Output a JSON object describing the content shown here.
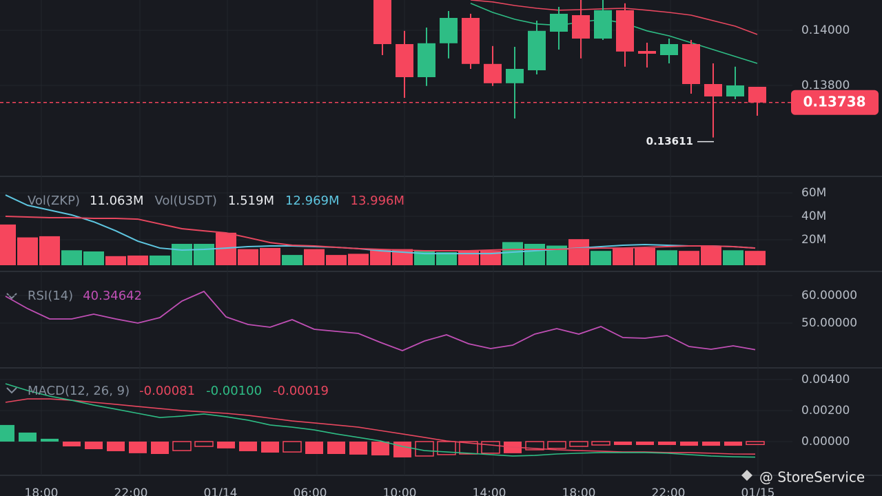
{
  "chart_data": [
    {
      "type": "candlestick",
      "open": [
        0.14135,
        0.1395,
        0.1383,
        0.13953,
        0.14045,
        0.13878,
        0.13808,
        0.13855,
        0.13995,
        0.14055,
        0.1397,
        0.14073,
        0.13925,
        0.1391,
        0.1395,
        0.13805,
        0.1376,
        0.13795
      ],
      "high": [
        0.1414,
        0.13998,
        0.1401,
        0.1407,
        0.1406,
        0.13943,
        0.1394,
        0.14035,
        0.14085,
        0.1411,
        0.1411,
        0.14098,
        0.13955,
        0.1397,
        0.13965,
        0.1388,
        0.13868,
        0.13795
      ],
      "low": [
        0.1391,
        0.13755,
        0.13798,
        0.13898,
        0.1386,
        0.13798,
        0.1368,
        0.1384,
        0.1393,
        0.13898,
        0.13965,
        0.13868,
        0.13865,
        0.1388,
        0.1377,
        0.13611,
        0.1375,
        0.1369
      ],
      "close": [
        0.1395,
        0.1383,
        0.13953,
        0.14045,
        0.13878,
        0.13808,
        0.1386,
        0.13998,
        0.1406,
        0.1397,
        0.14073,
        0.13923,
        0.13915,
        0.1395,
        0.13805,
        0.1376,
        0.138,
        0.13738
      ],
      "up_color": "#2ebd85",
      "down_color": "#f6465d",
      "series": [
        {
          "color": "#e8475f",
          "values": [
            null,
            null,
            null,
            null,
            0.1411,
            0.14103,
            0.1409,
            0.1408,
            0.14073,
            0.14075,
            0.14078,
            0.1408,
            0.14073,
            0.14065,
            0.14055,
            0.14035,
            0.14015,
            0.13985
          ]
        },
        {
          "color": "#2ebd85",
          "values": [
            null,
            null,
            null,
            null,
            0.14098,
            0.14065,
            0.1404,
            0.14023,
            0.14018,
            0.1403,
            0.1404,
            0.14025,
            0.13998,
            0.1398,
            0.13955,
            0.1393,
            0.13905,
            0.1388
          ]
        }
      ],
      "ylim": [
        0.134725,
        0.1411
      ],
      "yticks": [
        {
          "value": 0.14,
          "label": "0.14000"
        },
        {
          "value": 0.138,
          "label": "0.13800"
        }
      ],
      "last_price": 0.13738,
      "low_marker": 0.13611
    },
    {
      "type": "bar",
      "title": "Vol(ZKP)",
      "readouts": [
        {
          "text": "11.063M",
          "color": "#eaecef"
        },
        {
          "text": "Vol(USDT)",
          "color": "#848e9c"
        },
        {
          "text": "1.519M",
          "color": "#eaecef"
        },
        {
          "text": "12.969M",
          "color": "#5ec6e0"
        },
        {
          "text": "13.996M",
          "color": "#e8475f"
        }
      ],
      "values": [
        33,
        22,
        23,
        11,
        10,
        6,
        6.5,
        6.5,
        16.5,
        16.5,
        26,
        12,
        13,
        7,
        12,
        7,
        8,
        12,
        12,
        10.5,
        9.4,
        10.5,
        10.5,
        18,
        16.5,
        15,
        20.5,
        10.5,
        13,
        13,
        11,
        10.5,
        15,
        11,
        10.5
      ],
      "colors": [
        "#f6465d",
        "#f6465d",
        "#f6465d",
        "#2ebd85",
        "#2ebd85",
        "#f6465d",
        "#f6465d",
        "#2ebd85",
        "#2ebd85",
        "#2ebd85",
        "#f6465d",
        "#f6465d",
        "#f6465d",
        "#2ebd85",
        "#f6465d",
        "#f6465d",
        "#f6465d",
        "#f6465d",
        "#f6465d",
        "#2ebd85",
        "#2ebd85",
        "#f6465d",
        "#f6465d",
        "#2ebd85",
        "#2ebd85",
        "#2ebd85",
        "#f6465d",
        "#2ebd85",
        "#f6465d",
        "#f6465d",
        "#2ebd85",
        "#f6465d",
        "#f6465d",
        "#2ebd85",
        "#f6465d"
      ],
      "series": [
        {
          "color": "#5ec6e0",
          "values": [
            58.2,
            49.4,
            45.3,
            41.2,
            35.3,
            27.6,
            18.8,
            12.9,
            11.2,
            11.8,
            12.9,
            14.1,
            14.7,
            14.7,
            14.1,
            13.5,
            12.4,
            10.6,
            9.4,
            8.2,
            8.2,
            8.2,
            8.2,
            9.4,
            10.6,
            11.8,
            12.9,
            14.1,
            15.3,
            15.9,
            15.3,
            14.7,
            14.7,
            14.1,
            12.9
          ]
        },
        {
          "color": "#e8475f",
          "values": [
            40,
            39.4,
            38.8,
            38.8,
            38.2,
            38.2,
            37.6,
            33.5,
            29.4,
            27.6,
            25.9,
            21.8,
            17.6,
            15.3,
            14.7,
            13.5,
            12.4,
            11.8,
            11.2,
            10.6,
            10.6,
            10.6,
            11.2,
            11.8,
            11.8,
            11.8,
            12.4,
            12.9,
            12.9,
            13.5,
            14.1,
            14.7,
            14.7,
            14.1,
            12.9
          ]
        }
      ],
      "ylim": [
        -5.88,
        72.94
      ],
      "yticks": [
        {
          "value": 60,
          "label": "60M"
        },
        {
          "value": 40,
          "label": "40M"
        },
        {
          "value": 20,
          "label": "20M"
        }
      ]
    },
    {
      "type": "line",
      "title": "RSI(14)",
      "readouts": [
        {
          "text": "40.34642",
          "color": "#c04fb5"
        }
      ],
      "series": [
        {
          "color": "#c04fb5",
          "values": [
            59.75,
            55.25,
            51.5,
            51.5,
            53.25,
            51.5,
            50,
            52,
            58,
            61.5,
            52.25,
            49.5,
            48.5,
            51.25,
            47.75,
            47,
            46.25,
            43,
            40,
            43.5,
            45.75,
            42.5,
            40.75,
            42,
            46,
            48,
            46,
            48.75,
            44.75,
            44.5,
            45.5,
            41.5,
            40.5,
            41.75,
            40.34642
          ]
        }
      ],
      "ylim": [
        34.25,
        68.25
      ],
      "yticks": [
        {
          "value": 60,
          "label": "60.00000"
        },
        {
          "value": 50,
          "label": "50.00000"
        }
      ]
    },
    {
      "type": "macd",
      "title": "MACD(12, 26, 9)",
      "readouts": [
        {
          "text": "-0.00081",
          "color": "#e8475f"
        },
        {
          "text": "-0.00100",
          "color": "#2ebd85"
        },
        {
          "text": "-0.00019",
          "color": "#e8475f"
        }
      ],
      "histogram": [
        0.00107,
        0.00058,
        0.00018,
        -0.00031,
        -0.00049,
        -0.00062,
        -0.00075,
        -0.0008,
        -0.00058,
        -0.00031,
        -0.00044,
        -0.00062,
        -0.00071,
        -0.00067,
        -0.0008,
        -0.0008,
        -0.00084,
        -0.00089,
        -0.00102,
        -0.00093,
        -0.00084,
        -0.0008,
        -0.00075,
        -0.00075,
        -0.00053,
        -0.00044,
        -0.00031,
        -0.00022,
        -0.00022,
        -0.00022,
        -0.00022,
        -0.00027,
        -0.00027,
        -0.00027,
        -0.00019
      ],
      "up_color": "#2ebd85",
      "down_color": "#f6465d",
      "series": [
        {
          "color": "#e8475f",
          "values": [
            0.00253,
            0.00275,
            0.00275,
            0.00266,
            0.00253,
            0.0024,
            0.00226,
            0.00213,
            0.002,
            0.00191,
            0.00182,
            0.00169,
            0.00151,
            0.00133,
            0.0012,
            0.00107,
            0.00093,
            0.00071,
            0.00049,
            0.00027,
            4e-05,
            -9e-05,
            -0.00022,
            -0.00036,
            -0.00044,
            -0.00053,
            -0.00058,
            -0.00062,
            -0.00067,
            -0.00067,
            -0.00071,
            -0.00071,
            -0.00075,
            -0.0008,
            -0.00081
          ]
        },
        {
          "color": "#2ebd85",
          "values": [
            0.00373,
            0.00329,
            0.00293,
            0.00266,
            0.00235,
            0.00209,
            0.00182,
            0.00155,
            0.00164,
            0.00178,
            0.0016,
            0.00138,
            0.00107,
            0.00093,
            0.00075,
            0.00049,
            0.00027,
            4e-05,
            -0.00031,
            -0.00058,
            -0.00067,
            -0.00075,
            -0.00084,
            -0.00093,
            -0.00089,
            -0.0008,
            -0.00075,
            -0.00071,
            -0.00071,
            -0.00071,
            -0.00075,
            -0.00084,
            -0.00093,
            -0.00098,
            -0.001
          ]
        }
      ],
      "ylim": [
        -0.002176,
        0.004662
      ],
      "yticks": [
        {
          "value": 0.004,
          "label": "0.00400"
        },
        {
          "value": 0.002,
          "label": "0.00200"
        },
        {
          "value": 0,
          "label": "0.00000"
        }
      ]
    }
  ],
  "time_labels": [
    "18:00",
    "22:00",
    "01/14",
    "06:00",
    "10:00",
    "14:00",
    "18:00",
    "22:00",
    "01/15"
  ],
  "watermark": "@ StoreService"
}
